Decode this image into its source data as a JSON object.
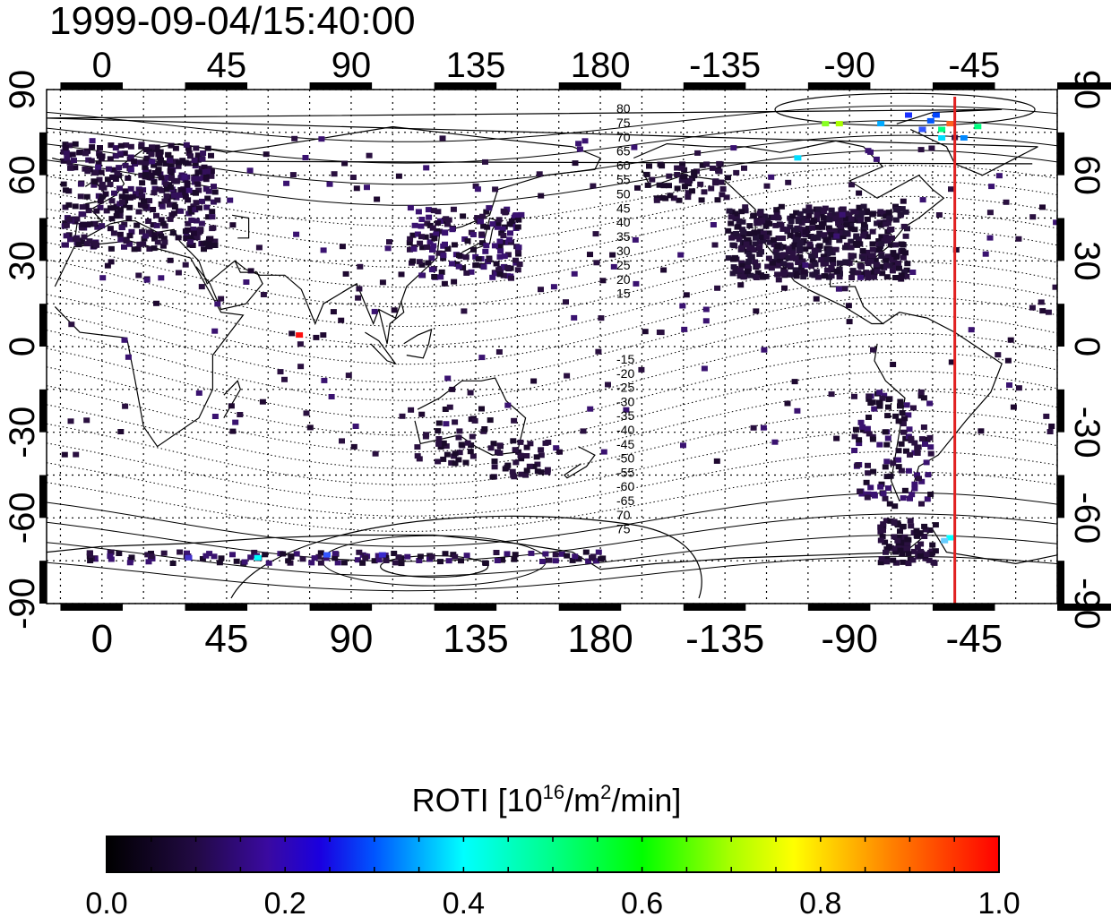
{
  "title": "1999-09-04/15:40:00",
  "map": {
    "x_tick_labels": [
      "0",
      "45",
      "90",
      "135",
      "180",
      "-135",
      "-90",
      "-45"
    ],
    "y_tick_labels": [
      "90",
      "60",
      "30",
      "0",
      "-30",
      "-60",
      "-90"
    ],
    "contour_labels_north": [
      "80",
      "75",
      "70",
      "65",
      "60",
      "55",
      "50",
      "45",
      "40",
      "35",
      "30",
      "25",
      "20",
      "15"
    ],
    "contour_labels_south": [
      "-15",
      "-20",
      "-25",
      "-30",
      "-35",
      "-40",
      "-45",
      "-50",
      "-55",
      "-60",
      "-65",
      "70",
      "75"
    ],
    "meridian_line_longitude": -52,
    "meridian_line_color": "#e02020",
    "lon_range": [
      -20,
      345
    ],
    "lat_range": [
      -90,
      90
    ]
  },
  "colorbar": {
    "label_main": "ROTI  [10",
    "label_sup1": "16",
    "label_mid": "/m",
    "label_sup2": "2",
    "label_end": "/min]",
    "tick_labels": [
      "0.0",
      "0.2",
      "0.4",
      "0.6",
      "0.8",
      "1.0"
    ],
    "range": [
      0.0,
      1.0
    ],
    "colors": [
      "#000000",
      "#2a0a55",
      "#3a0aa0",
      "#0000ff",
      "#00ffff",
      "#00ff00",
      "#ffff00",
      "#ff8000",
      "#ff0000"
    ]
  }
}
